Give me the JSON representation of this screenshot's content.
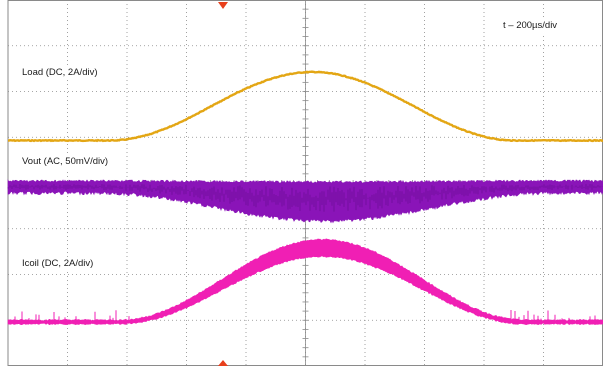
{
  "scope": {
    "timebase_label": "t – 200µs/div",
    "trigger_marker_color": "#e8401c",
    "grid_color": "#8a8a8a",
    "divisions": {
      "horizontal": 10,
      "vertical": 8
    }
  },
  "traces": [
    {
      "id": "load",
      "label": "Load (DC, 2A/div)",
      "color": "#e3a614"
    },
    {
      "id": "vout",
      "label": "Vout (AC, 50mV/div)",
      "color": "#8a14b8"
    },
    {
      "id": "icoil",
      "label": "Icoil (DC, 2A/div)",
      "color": "#f01fb4"
    }
  ]
}
